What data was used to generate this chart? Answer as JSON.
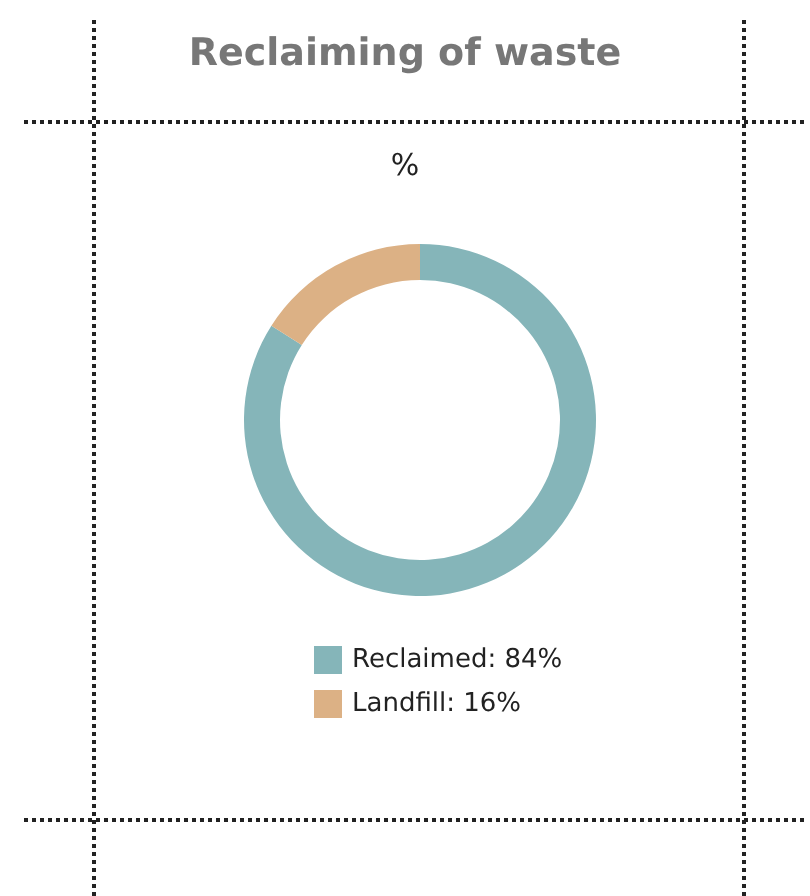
{
  "chart_data": {
    "type": "donut",
    "title": "Reclaiming of waste",
    "subtitle": "%",
    "categories": [
      "Reclaimed",
      "Landfill"
    ],
    "values": [
      84,
      16
    ],
    "colors": [
      "#85b5b9",
      "#dcb185"
    ],
    "value_labels": [
      "84%",
      "16%"
    ],
    "legend": "bottom"
  }
}
